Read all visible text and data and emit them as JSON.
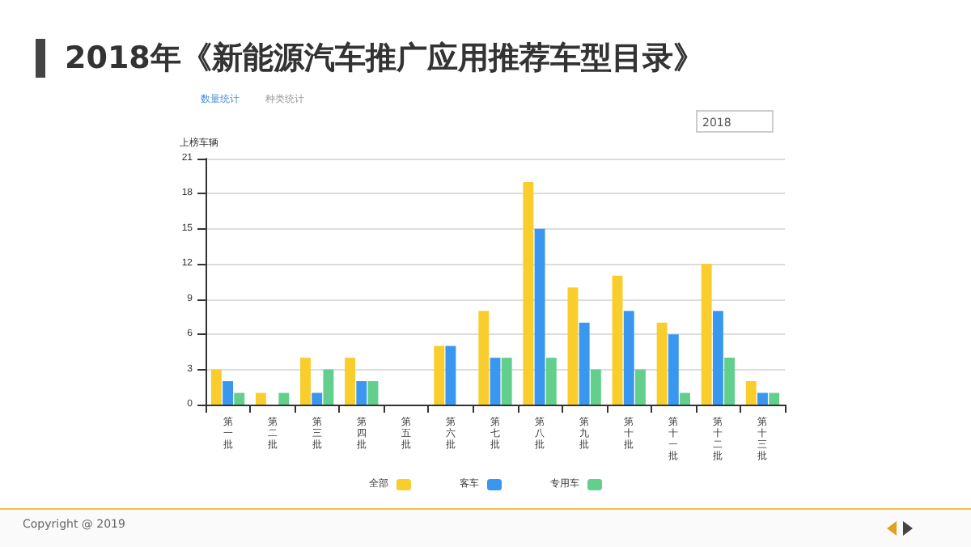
{
  "chart_data": {
    "type": "bar",
    "title": "2018年《新能源汽车推广应用推荐车型目录》",
    "ylabel": "上榜车辆",
    "annotations": [
      "数量统计",
      "种类统计",
      "2018",
      "Copyright @ 2019"
    ],
    "categories": [
      "第一批",
      "第二批",
      "第三批",
      "第四批",
      "第五批",
      "第六批",
      "第七批",
      "第八批",
      "第九批",
      "第十批",
      "第十一批",
      "第十二批",
      "第十三批"
    ],
    "series": [
      {
        "name": "全部",
        "color": "#f9cd2c",
        "values": [
          3,
          1,
          4,
          4,
          0,
          5,
          8,
          19,
          10,
          11,
          7,
          12,
          2
        ]
      },
      {
        "name": "客车",
        "color": "#3a97f0",
        "values": [
          2,
          0,
          1,
          2,
          0,
          5,
          4,
          15,
          7,
          8,
          6,
          8,
          1
        ]
      },
      {
        "name": "专用车",
        "color": "#62d08c",
        "values": [
          1,
          1,
          3,
          2,
          0,
          0,
          4,
          4,
          3,
          3,
          1,
          4,
          1
        ]
      }
    ],
    "ylim": [
      0,
      21
    ],
    "yticks": [
      0,
      3,
      6,
      9,
      12,
      15,
      18,
      21
    ],
    "grid": "y",
    "legend": "bottom"
  }
}
